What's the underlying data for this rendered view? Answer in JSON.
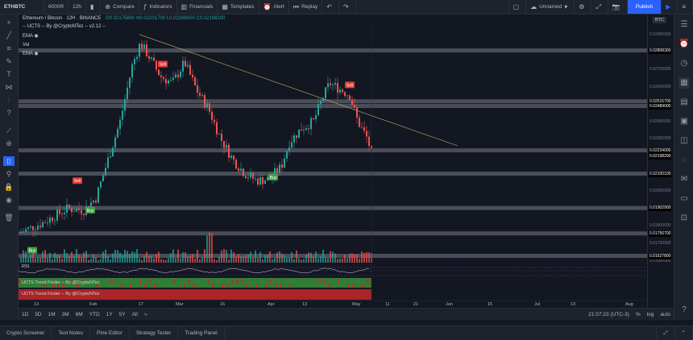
{
  "toolbar": {
    "symbol": "ETHBTC",
    "chart_style": "6000R",
    "interval": "12h",
    "compare": "Compare",
    "indicators": "Indicators",
    "financials": "Financials",
    "templates": "Templates",
    "alert": "Alert",
    "replay": "Replay",
    "layout_name": "Unnamed",
    "publish": "Publish"
  },
  "legend": {
    "title": "Ethereum / Bitcoin · 12H · BINANCE",
    "ohlc": "O0.02175800  H0.02201700  L0.02168000  C0.02198200",
    "ucts": "-- UCTS -- By @CryptoNTez -- v2.12 --",
    "ema1": "EMA",
    "vol": "Vol",
    "ema2": "EMA"
  },
  "price_scale": {
    "currency": "BTC",
    "ticks": [
      "0.02900000",
      "0.02800000",
      "0.02700000",
      "0.02600000",
      "0.02500000",
      "0.02400000",
      "0.02300000",
      "0.02200000",
      "0.02100000",
      "0.02000000",
      "0.01900000",
      "0.01800000",
      "0.01700000",
      "0.01600000"
    ],
    "highlighted": [
      {
        "text": "0.02808300",
        "color": "#ffffff",
        "bg": "#131722"
      },
      {
        "text": "0.02515700",
        "color": "#ffffff",
        "bg": "#131722"
      },
      {
        "text": "0.02489000",
        "color": "#ffffff",
        "bg": "#131722"
      },
      {
        "text": "0.02234000",
        "color": "#ffffff",
        "bg": "#131722"
      },
      {
        "text": "0.02198200",
        "color": "#ffffff",
        "bg": "#131722"
      },
      {
        "text": "0.02100100",
        "color": "#ffffff",
        "bg": "#131722"
      },
      {
        "text": "0.01902900",
        "color": "#ffffff",
        "bg": "#131722"
      },
      {
        "text": "0.01756700",
        "color": "#ffffff",
        "bg": "#131722"
      },
      {
        "text": "0.01627800",
        "color": "#ffffff",
        "bg": "#131722"
      }
    ]
  },
  "signals": [
    {
      "text": "Sell",
      "color": "#e53935"
    },
    {
      "text": "Sell",
      "color": "#e53935"
    },
    {
      "text": "Sell",
      "color": "#e53935"
    },
    {
      "text": "Buy",
      "color": "#43a047"
    },
    {
      "text": "Buy",
      "color": "#43a047"
    },
    {
      "text": "Buy",
      "color": "#43a047"
    }
  ],
  "indicators": {
    "rsi": "RSI",
    "trend1": "UCTS Trend Finder -- By @CryptoNTez",
    "trend2": "UCTS Trend Finder -- By @CryptoNTez"
  },
  "time_axis": [
    "13",
    "Feb",
    "17",
    "Mar",
    "16",
    "Apr",
    "13",
    "May",
    "11",
    "21",
    "Jun",
    "15",
    "Jul",
    "13",
    "Aug"
  ],
  "range_buttons": [
    "1D",
    "5D",
    "1M",
    "3M",
    "6M",
    "YTD",
    "1Y",
    "5Y",
    "All"
  ],
  "status": {
    "clock": "21:07:23 (UTC-3)",
    "percent": "%",
    "log": "log",
    "auto": "auto"
  },
  "footer_tabs": [
    "Crypto Screener",
    "Text Notes",
    "Pine Editor",
    "Strategy Tester",
    "Trading Panel"
  ],
  "colors": {
    "up": "#26a69a",
    "down": "#ef5350",
    "background": "#131722",
    "accent": "#2962ff"
  },
  "chart_data": {
    "type": "candlestick",
    "ylim": [
      0.0157,
      0.0295
    ],
    "horizontal_levels": [
      0.028083,
      0.025157,
      0.02489,
      0.02234,
      0.021001,
      0.019029,
      0.017567,
      0.016278
    ],
    "last_price": 0.021982
  }
}
